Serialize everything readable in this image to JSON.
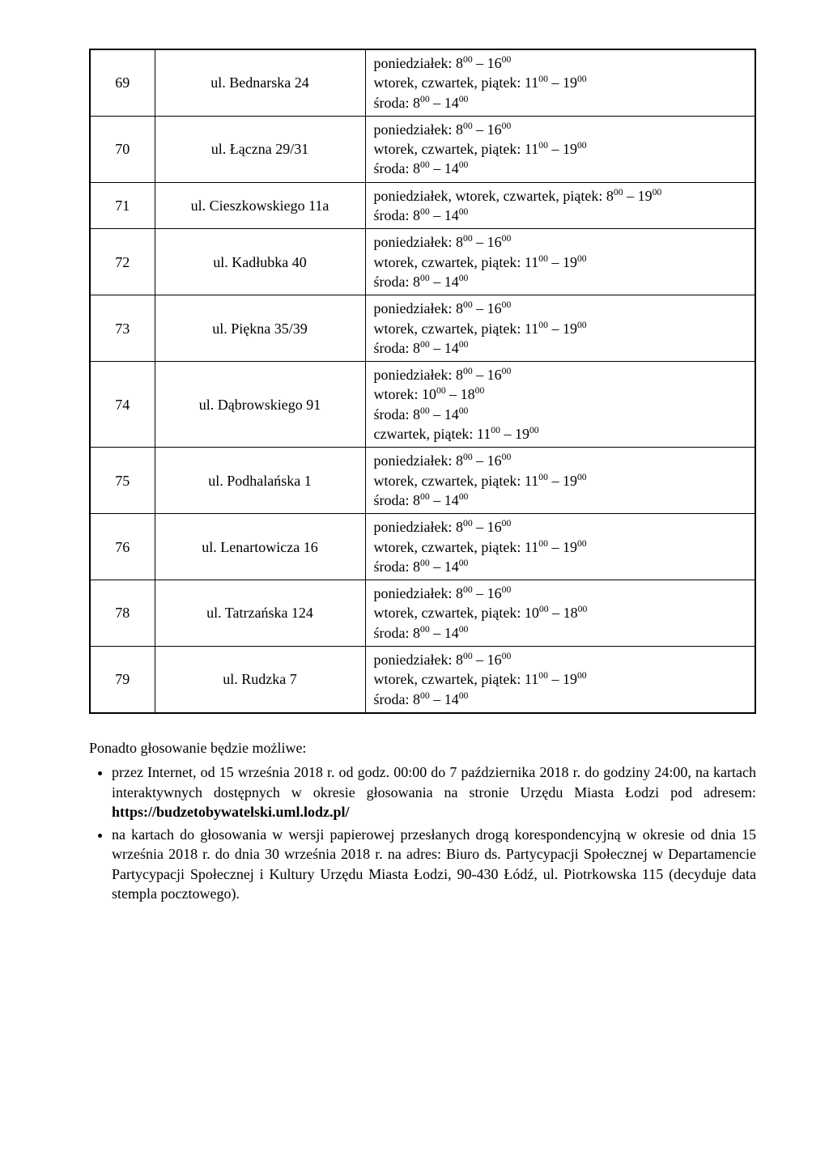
{
  "table": {
    "rows": [
      {
        "num": "69",
        "addr": "ul. Bednarska 24",
        "lines": [
          "poniedziałek: 8<sup>00</sup> – 16<sup>00</sup>",
          "wtorek, czwartek, piątek: 11<sup>00</sup> – 19<sup>00</sup>",
          "środa: 8<sup>00</sup> – 14<sup>00</sup>"
        ]
      },
      {
        "num": "70",
        "addr": "ul. Łączna 29/31",
        "lines": [
          "poniedziałek: 8<sup>00</sup> – 16<sup>00</sup>",
          "wtorek, czwartek, piątek: 11<sup>00</sup> – 19<sup>00</sup>",
          "środa: 8<sup>00</sup> – 14<sup>00</sup>"
        ]
      },
      {
        "num": "71",
        "addr": "ul. Cieszkowskiego 11a",
        "lines": [
          "poniedziałek, wtorek, czwartek, piątek: 8<sup>00</sup> – 19<sup>00</sup>",
          "środa: 8<sup>00</sup> – 14<sup>00</sup>"
        ]
      },
      {
        "num": "72",
        "addr": "ul. Kadłubka 40",
        "lines": [
          "poniedziałek: 8<sup>00</sup> – 16<sup>00</sup>",
          "wtorek, czwartek, piątek: 11<sup>00</sup> – 19<sup>00</sup>",
          "środa: 8<sup>00</sup> – 14<sup>00</sup>"
        ]
      },
      {
        "num": "73",
        "addr": "ul. Piękna 35/39",
        "lines": [
          "poniedziałek: 8<sup>00</sup> – 16<sup>00</sup>",
          "wtorek, czwartek, piątek: 11<sup>00</sup> – 19<sup>00</sup>",
          "środa: 8<sup>00</sup> – 14<sup>00</sup>"
        ]
      },
      {
        "num": "74",
        "addr": "ul. Dąbrowskiego 91",
        "lines": [
          "poniedziałek: 8<sup>00</sup> – 16<sup>00</sup>",
          "wtorek: 10<sup>00</sup> – 18<sup>00</sup>",
          "środa: 8<sup>00</sup> – 14<sup>00</sup>",
          "czwartek, piątek: 11<sup>00</sup> – 19<sup>00</sup>"
        ]
      },
      {
        "num": "75",
        "addr": "ul. Podhalańska 1",
        "lines": [
          "poniedziałek: 8<sup>00</sup> – 16<sup>00</sup>",
          "wtorek, czwartek, piątek: 11<sup>00</sup> – 19<sup>00</sup>",
          "środa: 8<sup>00</sup> – 14<sup>00</sup>"
        ]
      },
      {
        "num": "76",
        "addr": "ul. Lenartowicza 16",
        "lines": [
          "poniedziałek: 8<sup>00</sup> – 16<sup>00</sup>",
          "wtorek, czwartek, piątek: 11<sup>00</sup> – 19<sup>00</sup>",
          "środa: 8<sup>00</sup> – 14<sup>00</sup>"
        ]
      },
      {
        "num": "78",
        "addr": "ul. Tatrzańska 124",
        "lines": [
          "poniedziałek: 8<sup>00</sup> – 16<sup>00</sup>",
          "wtorek, czwartek, piątek: 10<sup>00</sup> – 18<sup>00</sup>",
          "środa: 8<sup>00</sup> – 14<sup>00</sup>"
        ]
      },
      {
        "num": "79",
        "addr": "ul. Rudzka 7",
        "lines": [
          "poniedziałek: 8<sup>00</sup> – 16<sup>00</sup>",
          "wtorek, czwartek, piątek: 11<sup>00</sup> – 19<sup>00</sup>",
          "środa: 8<sup>00</sup> – 14<sup>00</sup>"
        ]
      }
    ]
  },
  "footer": {
    "intro": "Ponadto głosowanie będzie możliwe:",
    "bullets": [
      "przez Internet, od 15 września 2018 r. od godz. 00:00 do 7 października 2018 r. do godziny 24:00, na kartach interaktywnych dostępnych w okresie głosowania na stronie Urzędu Miasta Łodzi pod adresem: <b>https://budzetobywatelski.uml.lodz.pl/</b>",
      "na kartach do głosowania w wersji papierowej przesłanych drogą korespondencyjną w okresie od dnia 15 września 2018 r. do dnia 30 września 2018 r. na adres: Biuro ds. Partycypacji Społecznej w Departamencie Partycypacji Społecznej i Kultury Urzędu Miasta Łodzi, 90-430 Łódź, ul. Piotrkowska 115 (decyduje data stempla pocztowego)."
    ]
  }
}
